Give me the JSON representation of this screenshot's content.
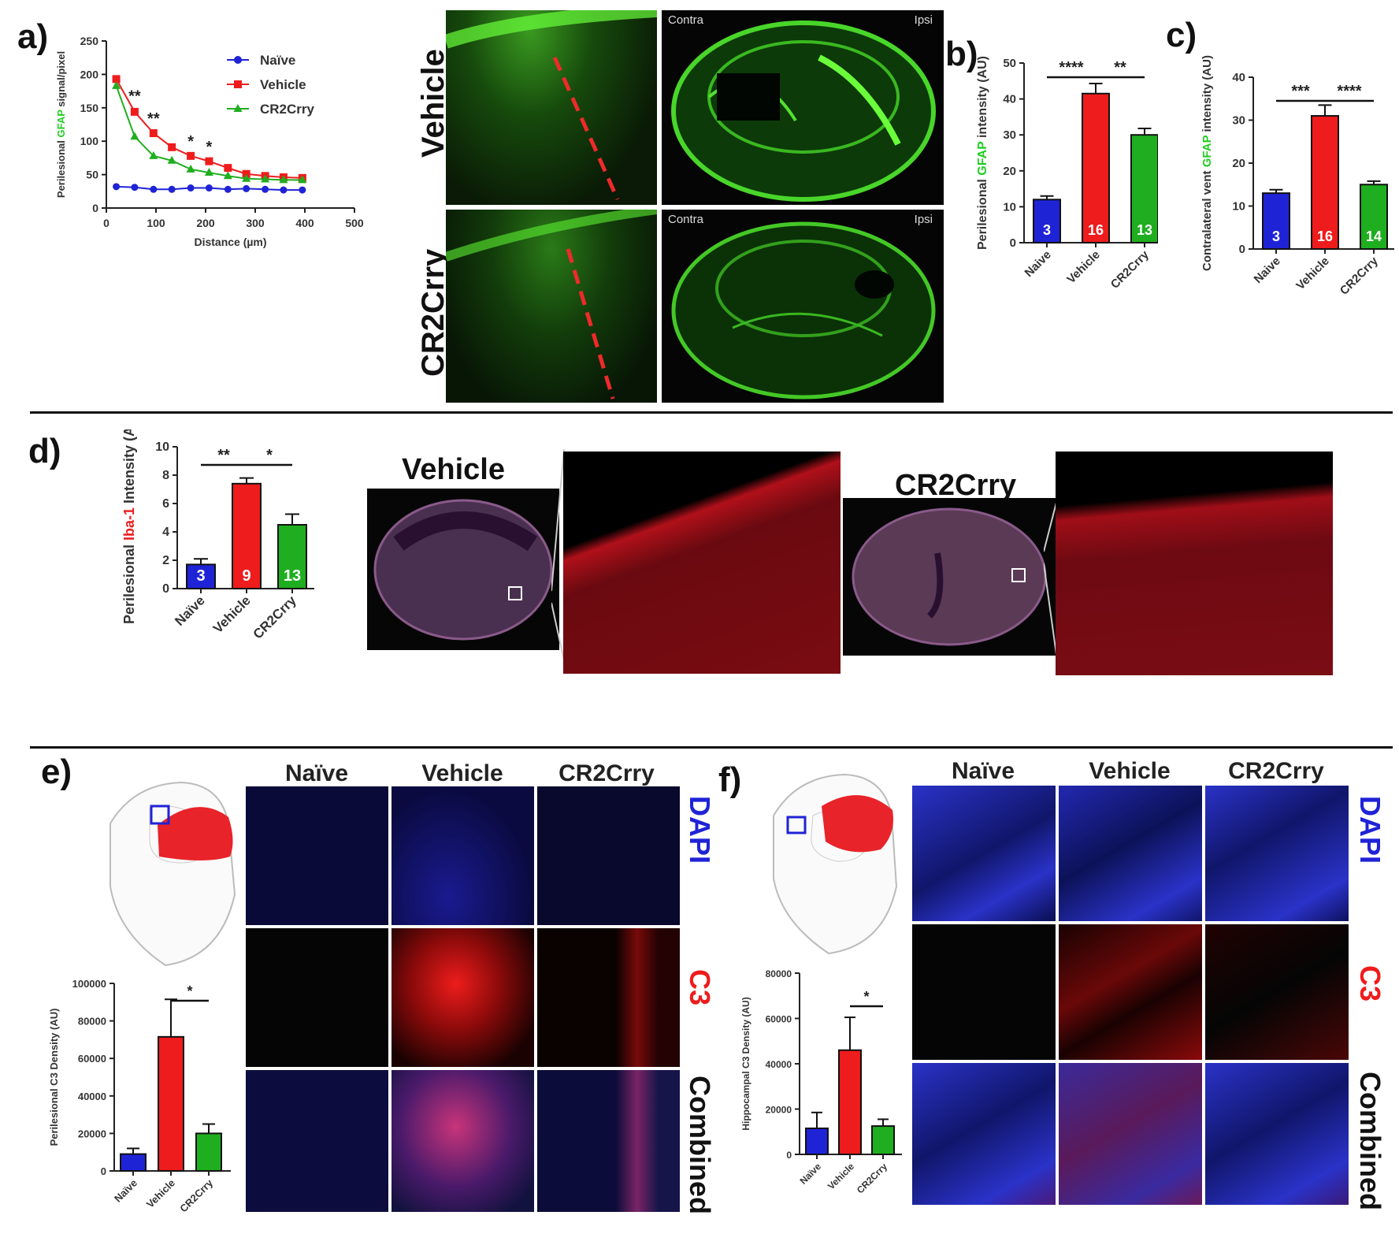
{
  "panels": {
    "a": {
      "label": "a)"
    },
    "b": {
      "label": "b)"
    },
    "c": {
      "label": "c)"
    },
    "d": {
      "label": "d)"
    },
    "e": {
      "label": "e)"
    },
    "f": {
      "label": "f)"
    }
  },
  "colors": {
    "naive": "#1f23d6",
    "vehicle": "#ee1c1c",
    "cr2crry": "#1fae1f",
    "gfap_green": "#22cc22",
    "iba_red": "#ee1c1c"
  },
  "micro_a": {
    "row1_label": "Vehicle",
    "row2_label": "CR2Crry",
    "contra": "Contra",
    "ipsi": "Ipsi"
  },
  "micro_d": {
    "vehicle_title": "Vehicle",
    "cr2crry_title": "CR2Crry"
  },
  "grid_e": {
    "cols": [
      "Naïve",
      "Vehicle",
      "CR2Crry"
    ],
    "rows": [
      "DAPI",
      "C3",
      "Combined"
    ]
  },
  "grid_f": {
    "cols": [
      "Naïve",
      "Vehicle",
      "CR2Crry"
    ],
    "rows": [
      "DAPI",
      "C3",
      "Combined"
    ]
  },
  "chart_data": [
    {
      "panel": "a",
      "type": "line",
      "xlabel": "Distance (µm)",
      "ylabel_parts": [
        "Perilesional ",
        "GFAP",
        " signal/pixel"
      ],
      "xlim": [
        0,
        500
      ],
      "ylim": [
        0,
        250
      ],
      "xticks": [
        0,
        100,
        200,
        300,
        400,
        500
      ],
      "yticks": [
        0,
        50,
        100,
        150,
        200,
        250
      ],
      "legend_position": "top-right",
      "x": [
        20,
        57,
        95,
        132,
        170,
        207,
        245,
        282,
        320,
        357,
        395
      ],
      "series": [
        {
          "name": "Naïve",
          "color": "#1f23d6",
          "marker": "circle",
          "values": [
            32,
            31,
            28,
            28,
            30,
            30,
            28,
            29,
            28,
            27,
            27
          ]
        },
        {
          "name": "Vehicle",
          "color": "#ee1c1c",
          "marker": "square",
          "values": [
            193,
            144,
            112,
            91,
            78,
            70,
            60,
            51,
            48,
            46,
            45
          ]
        },
        {
          "name": "CR2Crry",
          "color": "#1fae1f",
          "marker": "triangle",
          "values": [
            183,
            107,
            78,
            71,
            58,
            53,
            48,
            44,
            43,
            42,
            42
          ]
        }
      ],
      "annotations": [
        {
          "x": 57,
          "y": 160,
          "text": "**"
        },
        {
          "x": 95,
          "y": 126,
          "text": "**"
        },
        {
          "x": 170,
          "y": 92,
          "text": "*"
        },
        {
          "x": 207,
          "y": 84,
          "text": "*"
        }
      ]
    },
    {
      "panel": "b",
      "type": "bar",
      "categories": [
        "Naive",
        "Vehicle",
        "CR2Crry"
      ],
      "values": [
        12,
        41.5,
        30
      ],
      "errors": [
        1,
        2.8,
        1.8
      ],
      "n_labels": [
        "3",
        "16",
        "13"
      ],
      "ylabel_parts": [
        "Perilesional ",
        "GFAP",
        " intensity (AU)"
      ],
      "ylim": [
        0,
        50
      ],
      "yticks": [
        0,
        10,
        20,
        30,
        40,
        50
      ],
      "significance": [
        {
          "from": 0,
          "to": 1,
          "text": "****"
        },
        {
          "from": 1,
          "to": 2,
          "text": "**"
        }
      ]
    },
    {
      "panel": "c",
      "type": "bar",
      "categories": [
        "Naive",
        "Vehicle",
        "CR2Crry"
      ],
      "values": [
        13,
        31,
        15
      ],
      "errors": [
        0.8,
        2.5,
        0.8
      ],
      "n_labels": [
        "3",
        "16",
        "14"
      ],
      "ylabel_parts": [
        "Contralateral vent ",
        "GFAP",
        " intensity (AU)"
      ],
      "ylim": [
        0,
        40
      ],
      "yticks": [
        0,
        10,
        20,
        30,
        40
      ],
      "significance": [
        {
          "from": 0,
          "to": 1,
          "text": "***"
        },
        {
          "from": 1,
          "to": 2,
          "text": "****"
        }
      ]
    },
    {
      "panel": "d",
      "type": "bar",
      "categories": [
        "Naïve",
        "Vehicle",
        "CR2Crry"
      ],
      "values": [
        1.7,
        7.4,
        4.5
      ],
      "errors": [
        0.4,
        0.4,
        0.75
      ],
      "n_labels": [
        "3",
        "9",
        "13"
      ],
      "ylabel_parts": [
        "Perilesional ",
        "Iba-1",
        " Intensity (AU)"
      ],
      "ylim": [
        0,
        10
      ],
      "yticks": [
        0,
        2,
        4,
        6,
        8,
        10
      ],
      "significance": [
        {
          "from": 0,
          "to": 1,
          "text": "**"
        },
        {
          "from": 1,
          "to": 2,
          "text": "*"
        }
      ]
    },
    {
      "panel": "e",
      "type": "bar",
      "categories": [
        "Naïve",
        "Vehicle",
        "CR2Crry"
      ],
      "values": [
        9000,
        71500,
        20000
      ],
      "errors": [
        3000,
        20000,
        5000
      ],
      "ylabel": "Perilesional C3 Density  (AU)",
      "ylim": [
        0,
        100000
      ],
      "yticks": [
        0,
        20000,
        40000,
        60000,
        80000,
        100000
      ],
      "significance": [
        {
          "from": 1,
          "to": 2,
          "text": "*"
        }
      ]
    },
    {
      "panel": "f",
      "type": "bar",
      "categories": [
        "Naïve",
        "Vehicle",
        "CR2Crry"
      ],
      "values": [
        11500,
        46000,
        12500
      ],
      "errors": [
        7000,
        14500,
        3000
      ],
      "ylabel": "Hippocampal  C3 Density  (AU)",
      "ylim": [
        0,
        80000
      ],
      "yticks": [
        0,
        20000,
        40000,
        60000,
        80000
      ],
      "significance": [
        {
          "from": 1,
          "to": 2,
          "text": "*"
        }
      ]
    }
  ]
}
